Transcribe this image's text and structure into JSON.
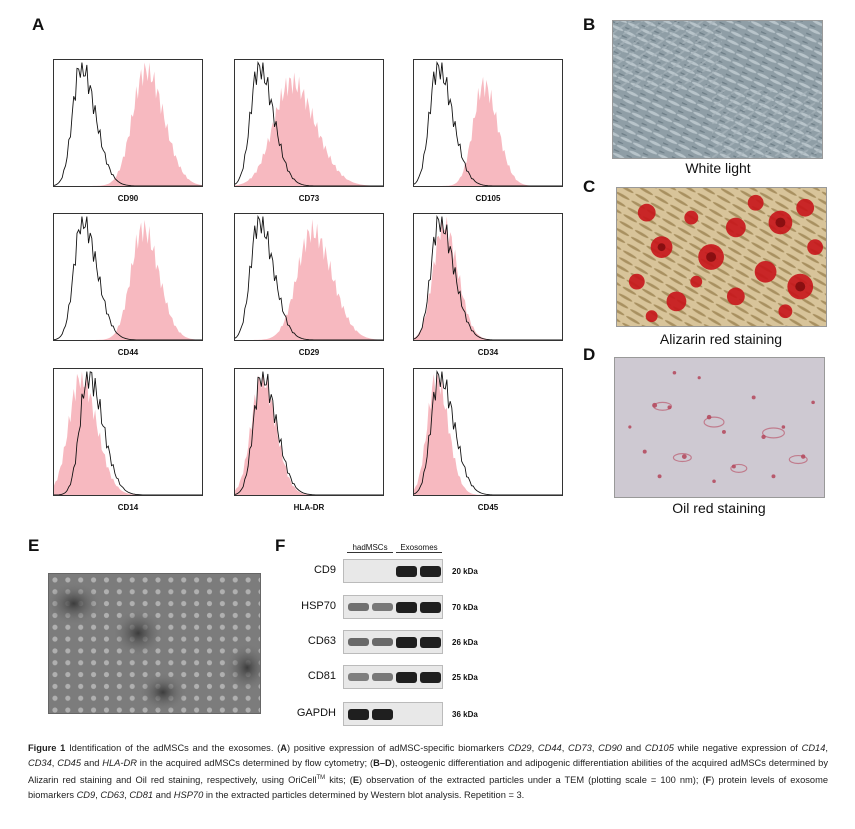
{
  "panels": {
    "A": "A",
    "B": "B",
    "C": "C",
    "D": "D",
    "E": "E",
    "F": "F"
  },
  "flow": {
    "markers": [
      "CD90",
      "CD73",
      "CD105",
      "CD44",
      "CD29",
      "CD34",
      "CD14",
      "HLA-DR",
      "CD45"
    ]
  },
  "images": {
    "b_caption": "White light",
    "c_caption": "Alizarin red staining",
    "d_caption": "Oil red staining"
  },
  "western": {
    "groups": [
      "hadMSCs",
      "Exosomes"
    ],
    "rows": [
      {
        "label": "CD9",
        "kda": "20 kDa"
      },
      {
        "label": "HSP70",
        "kda": "70 kDa"
      },
      {
        "label": "CD63",
        "kda": "26 kDa"
      },
      {
        "label": "CD81",
        "kda": "25 kDa"
      },
      {
        "label": "GAPDH",
        "kda": "36 kDa"
      }
    ]
  },
  "caption": {
    "fig": "Figure 1",
    "t1": " Identification of the adMSCs and the exosomes. (",
    "A": "A",
    "t2": ") positive expression of adMSC-specific biomarkers ",
    "m1": "CD29",
    "c1": ", ",
    "m2": "CD44",
    "c2": ", ",
    "m3": "CD73",
    "c3": ", ",
    "m4": "CD90",
    "c4": " and ",
    "m5": "CD105",
    "t3": " while negative expression of ",
    "m6": "CD14",
    "c5": ", ",
    "m7": "CD34",
    "c6": ", ",
    "m8": "CD45",
    "c7": " and ",
    "m9": "HLA-DR",
    "t4": " in the acquired adMSCs determined by flow cytometry; (",
    "BD": "B–D",
    "t5": "), osteogenic differentiation and adipogenic differentiation abilities of the acquired adMSCs determined by Alizarin red staining and Oil red staining, respectively, using OriCell",
    "tm": "TM",
    "t6": " kits; (",
    "E": "E",
    "t7": ") observation of the extracted particles under a TEM (plotting scale = 100 nm); (",
    "F": "F",
    "t8": ") protein levels of exosome biomarkers ",
    "m10": "CD9",
    "c8": ", ",
    "m11": "CD63",
    "c9": ", ",
    "m12": "CD81",
    "c10": " and ",
    "m13": "HSP70",
    "t9": " in the extracted particles determined by Western blot analysis. Repetition = 3."
  }
}
